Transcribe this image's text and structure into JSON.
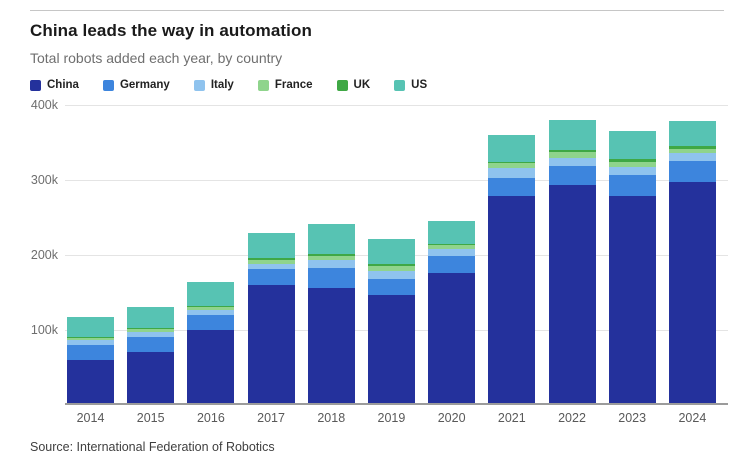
{
  "header": {
    "title": "China leads the way in automation",
    "subtitle": "Total robots added each year, by country"
  },
  "source": "Source: International Federation of Robotics",
  "chart_data": {
    "type": "bar",
    "stacked": true,
    "title": "China leads the way in automation",
    "subtitle": "Total robots added each year, by country",
    "unit": "robots added per year (values in thousands)",
    "legend_position": "top",
    "grid": true,
    "categories": [
      "2014",
      "2015",
      "2016",
      "2017",
      "2018",
      "2019",
      "2020",
      "2021",
      "2022",
      "2023",
      "2024"
    ],
    "series": [
      {
        "name": "China",
        "color": "#24319c",
        "values": [
          57.1,
          68.6,
          97.0,
          156.8,
          154.0,
          144.5,
          174.0,
          275.8,
          290.3,
          276.3,
          295.0
        ]
      },
      {
        "name": "Germany",
        "color": "#3d85dd",
        "values": [
          20.1,
          20.1,
          20.0,
          21.4,
          26.7,
          20.5,
          22.3,
          23.8,
          25.6,
          28.4,
          27.0
        ]
      },
      {
        "name": "Italy",
        "color": "#8fc3ee",
        "values": [
          6.2,
          6.7,
          6.5,
          7.7,
          9.8,
          11.1,
          8.5,
          14.1,
          11.5,
          10.4,
          11.0
        ]
      },
      {
        "name": "France",
        "color": "#8fd48c",
        "values": [
          2.9,
          3.0,
          4.2,
          4.9,
          5.8,
          6.7,
          5.4,
          5.9,
          7.4,
          6.4,
          6.0
        ]
      },
      {
        "name": "UK",
        "color": "#3fa845",
        "values": [
          2.1,
          1.6,
          1.8,
          2.3,
          2.3,
          2.0,
          2.2,
          2.1,
          2.5,
          3.8,
          3.0
        ]
      },
      {
        "name": "US",
        "color": "#57c3b3",
        "values": [
          26.2,
          27.5,
          31.4,
          33.2,
          40.4,
          33.3,
          30.8,
          35.0,
          39.6,
          37.6,
          34.2
        ]
      }
    ],
    "y_axis": {
      "ticks": [
        "100k",
        "200k",
        "300k",
        "400k"
      ],
      "tick_values": [
        100,
        200,
        300,
        400
      ],
      "max": 400,
      "ylim": [
        0,
        400
      ]
    },
    "xlabel": "",
    "ylabel": ""
  },
  "style": {
    "accent_navy": "#24319c",
    "gridline_color": "#e4e4e4",
    "baseline_color": "#9b9b9b",
    "title_color": "#1a1a1a",
    "subtitle_color": "#6f6f6f"
  }
}
